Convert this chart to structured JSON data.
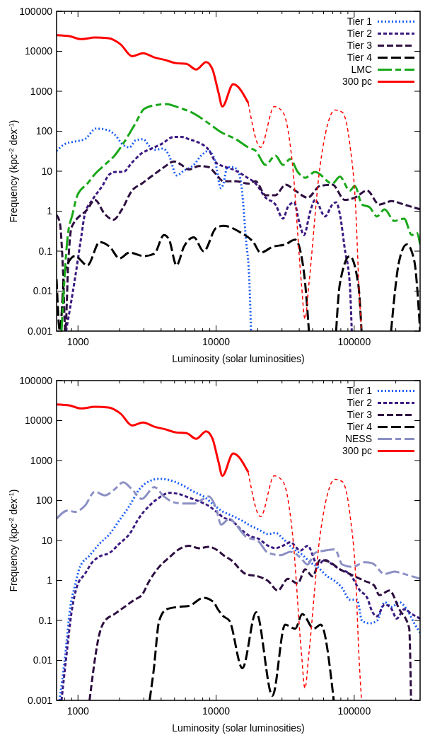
{
  "chart_data": [
    {
      "type": "line",
      "log": "xy",
      "xlim": [
        700,
        300000
      ],
      "ylim": [
        0.001,
        100000
      ],
      "xticks": [
        {
          "value": 800,
          "label": null
        },
        {
          "value": 900,
          "label": null
        },
        1000,
        {
          "value": 2000,
          "label": null
        },
        {
          "value": 3000,
          "label": null
        },
        {
          "value": 4000,
          "label": null
        },
        {
          "value": 5000,
          "label": null
        },
        {
          "value": 6000,
          "label": null
        },
        {
          "value": 7000,
          "label": null
        },
        {
          "value": 8000,
          "label": null
        },
        {
          "value": 9000,
          "label": null
        },
        10000,
        {
          "value": 20000,
          "label": null
        },
        {
          "value": 30000,
          "label": null
        },
        {
          "value": 40000,
          "label": null
        },
        {
          "value": 50000,
          "label": null
        },
        {
          "value": 60000,
          "label": null
        },
        {
          "value": 70000,
          "label": null
        },
        {
          "value": 80000,
          "label": null
        },
        {
          "value": 90000,
          "label": null
        },
        100000,
        {
          "value": 200000,
          "label": null
        }
      ],
      "yticks": [
        0.001,
        0.01,
        0.1,
        1,
        10,
        100,
        1000,
        10000,
        100000
      ],
      "xlabel": "Luminosity (solar luminosities)",
      "ylabel": "Frequency (kpc$^{-2}$ dex$^{-1}$)",
      "legend": "top right",
      "series": [
        {
          "name": "Tier 1",
          "color": "#1a5cf5",
          "line_style": "dotted",
          "x": [
            700,
            807,
            951,
            1122,
            1352,
            1627,
            1841,
            2128,
            2360,
            2618,
            2963,
            3283,
            3640,
            4121,
            4570,
            5170,
            5850,
            6900,
            7800,
            8830,
            9790,
            10860,
            11300,
            12050,
            13350,
            14500,
            15400,
            16400,
            17450,
            17900
          ],
          "values": [
            32,
            48.3,
            55.3,
            63.3,
            116,
            108,
            82.8,
            45.2,
            39.5,
            59.2,
            63.3,
            42.3,
            34.5,
            36.9,
            24.6,
            7.85,
            10.3,
            14.4,
            24.6,
            32.3,
            18.8,
            3.74,
            4.9,
            12.6,
            12.6,
            9.6,
            3.27,
            0.222,
            0.015,
            0.001
          ]
        },
        {
          "name": "Tier 2",
          "color": "#3b1a80",
          "line_style": "dashed",
          "x": [
            820,
            950,
            1055,
            1122,
            1270,
            1500,
            1695,
            1880,
            2128,
            2460,
            2900,
            3420,
            4040,
            4960,
            5610,
            6350,
            7500,
            8830,
            10000,
            11800,
            13900,
            16400,
            19350,
            22850,
            26900,
            30500,
            33100,
            36700,
            39800,
            43300,
            48000,
            52100,
            61500,
            69500,
            74000,
            78700,
            85500,
            92900,
            96000
          ],
          "values": [
            0.001,
            0.02,
            0.222,
            0.85,
            1.91,
            4.28,
            8.4,
            9.6,
            9.6,
            16.4,
            28.2,
            36.9,
            48.3,
            72.4,
            72.4,
            63.3,
            51.7,
            34.5,
            16.4,
            12.6,
            10.3,
            7.3,
            4.9,
            2.18,
            1.46,
            0.65,
            1.27,
            1.67,
            0.57,
            0.254,
            0.97,
            1.91,
            0.74,
            1.46,
            1.67,
            0.85,
            0.113,
            0.015,
            0.001
          ]
        },
        {
          "name": "Tier 3",
          "color": "#2e0f40",
          "line_style": "dashed",
          "x": [
            700,
            740,
            780,
            810,
            850,
            900,
            1170,
            1324,
            1563,
            1803,
            2084,
            2460,
            2900,
            3570,
            4200,
            4960,
            5610,
            6350,
            7500,
            8830,
            10000,
            11300,
            13900,
            17100,
            19350,
            22850,
            26900,
            31800,
            37400,
            46000,
            56600,
            69500,
            85500,
            101000,
            124000,
            152000,
            187000,
            230000,
            300000
          ],
          "values": [
            0.8,
            0.5,
            0.03,
            0.001,
            0.05,
            0.4,
            1.11,
            1.91,
            0.85,
            0.61,
            1.11,
            3.27,
            4.9,
            8.4,
            12.6,
            17.6,
            14.4,
            11,
            13.5,
            12.6,
            8.4,
            5.6,
            5.6,
            4.9,
            5.6,
            2.5,
            2.5,
            4.6,
            3.27,
            2.18,
            4.28,
            4.6,
            1.91,
            2.18,
            3.27,
            1.46,
            1.78,
            1.46,
            1.11
          ]
        },
        {
          "name": "Tier 4",
          "color": "#000000",
          "line_style": "dashed",
          "x": [
            700,
            740,
            800,
            951,
            1170,
            1437,
            1695,
            2000,
            2360,
            3020,
            3570,
            4200,
            4570,
            5170,
            5850,
            6900,
            8130,
            10000,
            11300,
            15100,
            18600,
            21000,
            25800,
            31800,
            37400,
            41500,
            44200,
            47000,
            60000,
            74000,
            78700,
            92900,
            107000,
            113000,
            150000,
            185000,
            212000,
            240000,
            272000,
            300000
          ],
          "values": [
            0.02,
            0.001,
            0.03,
            0.075,
            0.044,
            0.169,
            0.129,
            0.066,
            0.092,
            0.075,
            0.086,
            0.254,
            0.193,
            0.044,
            0.129,
            0.222,
            0.099,
            0.38,
            0.43,
            0.29,
            0.169,
            0.092,
            0.129,
            0.148,
            0.193,
            0.075,
            0.015,
            0.001,
            null,
            0.001,
            0.015,
            0.075,
            0.015,
            0.001,
            null,
            0.001,
            0.058,
            0.148,
            0.058,
            0.001
          ]
        },
        {
          "name": "LMC",
          "color": "#1aa81a",
          "line_style": "dashed",
          "x": [
            760,
            841,
            914,
            991,
            1170,
            1324,
            1563,
            1841,
            2175,
            2563,
            3020,
            3570,
            4380,
            5380,
            6620,
            7800,
            9200,
            10860,
            13900,
            17100,
            19350,
            22850,
            26900,
            30500,
            34500,
            39000,
            44200,
            52100,
            69500,
            78700,
            92900,
            101000,
            114000,
            129000,
            146000,
            166000,
            195000,
            230000,
            261000,
            283000,
            300000
          ],
          "values": [
            0.001,
            0.222,
            0.85,
            2.5,
            4.9,
            8.4,
            14.4,
            24.6,
            55.3,
            142,
            364,
            445,
            477,
            390,
            298,
            213,
            142,
            94.8,
            63.3,
            39.5,
            32.3,
            14.4,
            24.6,
            14.4,
            20.1,
            9.6,
            6.87,
            9.6,
            4.9,
            7.3,
            3.27,
            4.28,
            1.46,
            1.27,
            0.74,
            1.11,
            0.57,
            0.65,
            0.254,
            0.29,
            0.148
          ]
        },
        {
          "name": "300 pc",
          "color": "#ff0000",
          "line_style": "solid",
          "x": [
            700,
            875,
            1055,
            1324,
            1661,
            2040,
            2460,
            2960,
            3570,
            4200,
            5170,
            6090,
            7180,
            8470,
            9400,
            10400,
            11100,
            13300,
            17100
          ],
          "values": [
            25300,
            23700,
            20100,
            22100,
            21300,
            14800,
            7530,
            8980,
            7040,
            6160,
            5030,
            4830,
            3500,
            5390,
            3600,
            933,
            416,
            1500,
            509
          ]
        },
        {
          "color": "#ff0000",
          "line_style": "dashed",
          "x": [
            17100,
            21000,
            26400,
            30500,
            35900,
            41500,
            44000,
            47000,
            56000,
            64000,
            72400,
            82000,
            92900,
            103000,
            108000,
            113000
          ],
          "values": [
            509,
            39.4,
            416,
            298,
            12.7,
            0.0151,
            0.002,
            0.015,
            10,
            142,
            340,
            298,
            48,
            0.85,
            0.015,
            0.001
          ]
        }
      ]
    },
    {
      "type": "line",
      "log": "xy",
      "xlim": [
        700,
        300000
      ],
      "ylim": [
        0.001,
        100000
      ],
      "xticks": [
        {
          "value": 800,
          "label": null
        },
        {
          "value": 900,
          "label": null
        },
        1000,
        {
          "value": 2000,
          "label": null
        },
        {
          "value": 3000,
          "label": null
        },
        {
          "value": 4000,
          "label": null
        },
        {
          "value": 5000,
          "label": null
        },
        {
          "value": 6000,
          "label": null
        },
        {
          "value": 7000,
          "label": null
        },
        {
          "value": 8000,
          "label": null
        },
        {
          "value": 9000,
          "label": null
        },
        10000,
        {
          "value": 20000,
          "label": null
        },
        {
          "value": 30000,
          "label": null
        },
        {
          "value": 40000,
          "label": null
        },
        {
          "value": 50000,
          "label": null
        },
        {
          "value": 60000,
          "label": null
        },
        {
          "value": 70000,
          "label": null
        },
        {
          "value": 80000,
          "label": null
        },
        {
          "value": 90000,
          "label": null
        },
        100000,
        {
          "value": 200000,
          "label": null
        }
      ],
      "yticks": [
        0.001,
        0.01,
        0.1,
        1,
        10,
        100,
        1000,
        10000,
        100000
      ],
      "xlabel": "Luminosity (solar luminosities)",
      "ylabel": "Frequency (kpc$^{-2}$ dex$^{-1}$)",
      "legend": "top right",
      "series": [
        {
          "name": "Tier 1",
          "color": "#1a5cf5",
          "line_style": "dotted",
          "x": [
            735,
            807,
            875,
            951,
            1034,
            1219,
            1437,
            1695,
            2000,
            2360,
            2780,
            3283,
            3870,
            4570,
            5610,
            6900,
            8130,
            9590,
            10860,
            12800,
            15100,
            17800,
            20200,
            23800,
            26900,
            30500,
            35900,
            42400,
            48000,
            54300,
            64000,
            72400,
            82000,
            92900,
            105000,
            114000,
            129000,
            146000,
            166000,
            187000,
            212000,
            240000,
            272000,
            300000
          ],
          "values": [
            0.001,
            0.0127,
            0.19,
            0.74,
            2.18,
            4.28,
            8.4,
            14.5,
            32.6,
            73.5,
            190,
            304,
            348,
            326,
            248,
            166,
            126,
            78.7,
            56.1,
            42.8,
            32.6,
            23.3,
            19,
            14.5,
            15.5,
            11.1,
            6.4,
            4.28,
            2.85,
            2.18,
            1.26,
            0.97,
            0.64,
            0.33,
            0.33,
            0.097,
            0.085,
            0.097,
            0.286,
            0.218,
            0.286,
            0.19,
            0.085,
            0.049
          ]
        },
        {
          "name": "Tier 2",
          "color": "#3b1a80",
          "line_style": "dashed",
          "x": [
            760,
            824,
            905,
            988,
            1122,
            1270,
            1437,
            1695,
            2000,
            2360,
            2780,
            3283,
            3870,
            4570,
            5380,
            6350,
            7500,
            8830,
            10300,
            11300,
            12800,
            15100,
            17800,
            20200,
            23800,
            26900,
            30500,
            34500,
            40800,
            46000,
            54300,
            61500,
            69500,
            78700,
            92900,
            110000,
            124000,
            135000,
            146000,
            166000,
            187000,
            203000,
            230000,
            261000,
            300000
          ],
          "values": [
            0.001,
            0.0127,
            0.19,
            0.74,
            1.45,
            2.85,
            4.0,
            4.9,
            8.4,
            14.5,
            37.4,
            73.5,
            118,
            155,
            145,
            118,
            96,
            73.5,
            49,
            37.4,
            32.6,
            19,
            12.6,
            11.1,
            7.4,
            6.4,
            7.4,
            9.0,
            5.6,
            7.4,
            2.5,
            3.27,
            2.5,
            1.9,
            1.45,
            0.56,
            0.37,
            0.166,
            0.127,
            0.25,
            0.19,
            0.111,
            0.19,
            0.145,
            0.111
          ]
        },
        {
          "name": "Tier 3",
          "color": "#2e0f40",
          "line_style": "dashed",
          "x": [
            1213,
            1437,
            1563,
            1841,
            2175,
            2563,
            2900,
            3283,
            3870,
            4570,
            5380,
            6350,
            7500,
            8830,
            10300,
            11300,
            12800,
            16400,
            20200,
            23800,
            28000,
            33100,
            39000,
            44200,
            50000,
            56600,
            66700,
            78700,
            92900,
            119000,
            140000,
            152000,
            180000,
            212000,
            250000,
            258000
          ],
          "values": [
            0.001,
            0.049,
            0.097,
            0.145,
            0.218,
            0.33,
            0.43,
            0.97,
            2.18,
            3.74,
            6.0,
            7.4,
            6.4,
            6.9,
            5.6,
            4.28,
            3.27,
            1.45,
            1.26,
            0.97,
            0.56,
            1.1,
            0.84,
            1.9,
            1.26,
            3.27,
            2.85,
            1.9,
            1.45,
            0.97,
            0.74,
            0.43,
            0.56,
            0.19,
            0.065,
            0.001
          ]
        },
        {
          "name": "Tier 4",
          "color": "#000000",
          "line_style": "dashed",
          "x": [
            3300,
            3530,
            3870,
            4380,
            5380,
            6350,
            8130,
            9590,
            10300,
            11300,
            12500,
            15500,
            19500,
            25600,
            31600,
            37400,
            42100,
            50900,
            57300,
            71100
          ],
          "values": [
            0.001,
            0.0055,
            0.097,
            0.19,
            0.218,
            0.23,
            0.37,
            0.286,
            0.19,
            0.127,
            0.098,
            0.0064,
            0.16,
            0.0013,
            0.078,
            0.062,
            0.145,
            0.062,
            0.078,
            0.001
          ]
        },
        {
          "name": "NESS",
          "color": "#8c90c4",
          "line_style": "dashed",
          "x": [
            700,
            841,
            951,
            1122,
            1324,
            1563,
            1841,
            2128,
            2460,
            2900,
            3570,
            4200,
            4960,
            5850,
            6900,
            8130,
            8830,
            10000,
            10860,
            12500,
            13900,
            16400,
            20200,
            23800,
            29300,
            34500,
            40800,
            46000,
            52100,
            61500,
            72400,
            82000,
            96800,
            119000,
            135000,
            166000,
            195000,
            230000,
            300000
          ],
          "values": [
            34.9,
            56,
            52,
            73.5,
            166,
            135,
            190,
            285,
            190,
            110,
            217,
            126,
            90,
            84,
            84,
            110,
            126,
            64,
            25,
            35,
            25,
            12.6,
            9.6,
            4.9,
            4.28,
            5.2,
            3.74,
            2.5,
            4.9,
            5.6,
            6.0,
            2.5,
            2.18,
            2.85,
            2.7,
            1.45,
            1.66,
            1.45,
            1.1
          ]
        },
        {
          "name": "300 pc",
          "color": "#ff0000",
          "line_style": "solid",
          "x": [
            700,
            875,
            1055,
            1324,
            1661,
            2040,
            2460,
            2960,
            3570,
            4200,
            5170,
            6090,
            7180,
            8470,
            9400,
            10400,
            11100,
            13300,
            17100
          ],
          "values": [
            25300,
            23700,
            20100,
            22100,
            21300,
            14800,
            7530,
            8980,
            7040,
            6160,
            5030,
            4830,
            3500,
            5390,
            3600,
            933,
            416,
            1500,
            509
          ]
        },
        {
          "color": "#ff0000",
          "line_style": "dashed",
          "x": [
            17100,
            21000,
            26400,
            30500,
            35900,
            41500,
            44000,
            47000,
            56000,
            64000,
            72400,
            82000,
            92900,
            103000,
            108000,
            113000
          ],
          "values": [
            509,
            39.4,
            416,
            298,
            12.7,
            0.0151,
            0.002,
            0.015,
            10,
            142,
            340,
            298,
            48,
            0.85,
            0.015,
            0.001
          ]
        }
      ]
    }
  ]
}
